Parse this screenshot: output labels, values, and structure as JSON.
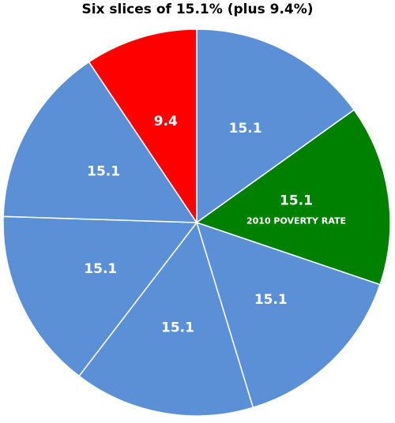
{
  "chart_data": {
    "type": "pie",
    "title": "Six slices of 15.1% (plus 9.4%)",
    "slices": [
      {
        "value": 15.1,
        "label": "15.1",
        "color": "#5B8FD6"
      },
      {
        "value": 15.1,
        "label": "15.1",
        "color": "#008000",
        "annotation": "2010 POVERTY RATE"
      },
      {
        "value": 15.1,
        "label": "15.1",
        "color": "#5B8FD6"
      },
      {
        "value": 15.1,
        "label": "15.1",
        "color": "#5B8FD6"
      },
      {
        "value": 15.1,
        "label": "15.1",
        "color": "#5B8FD6"
      },
      {
        "value": 15.1,
        "label": "15.1",
        "color": "#5B8FD6"
      },
      {
        "value": 9.4,
        "label": "9.4",
        "color": "#FF0000"
      }
    ],
    "start_angle": "12 o'clock",
    "direction": "clockwise",
    "legend": "none"
  }
}
